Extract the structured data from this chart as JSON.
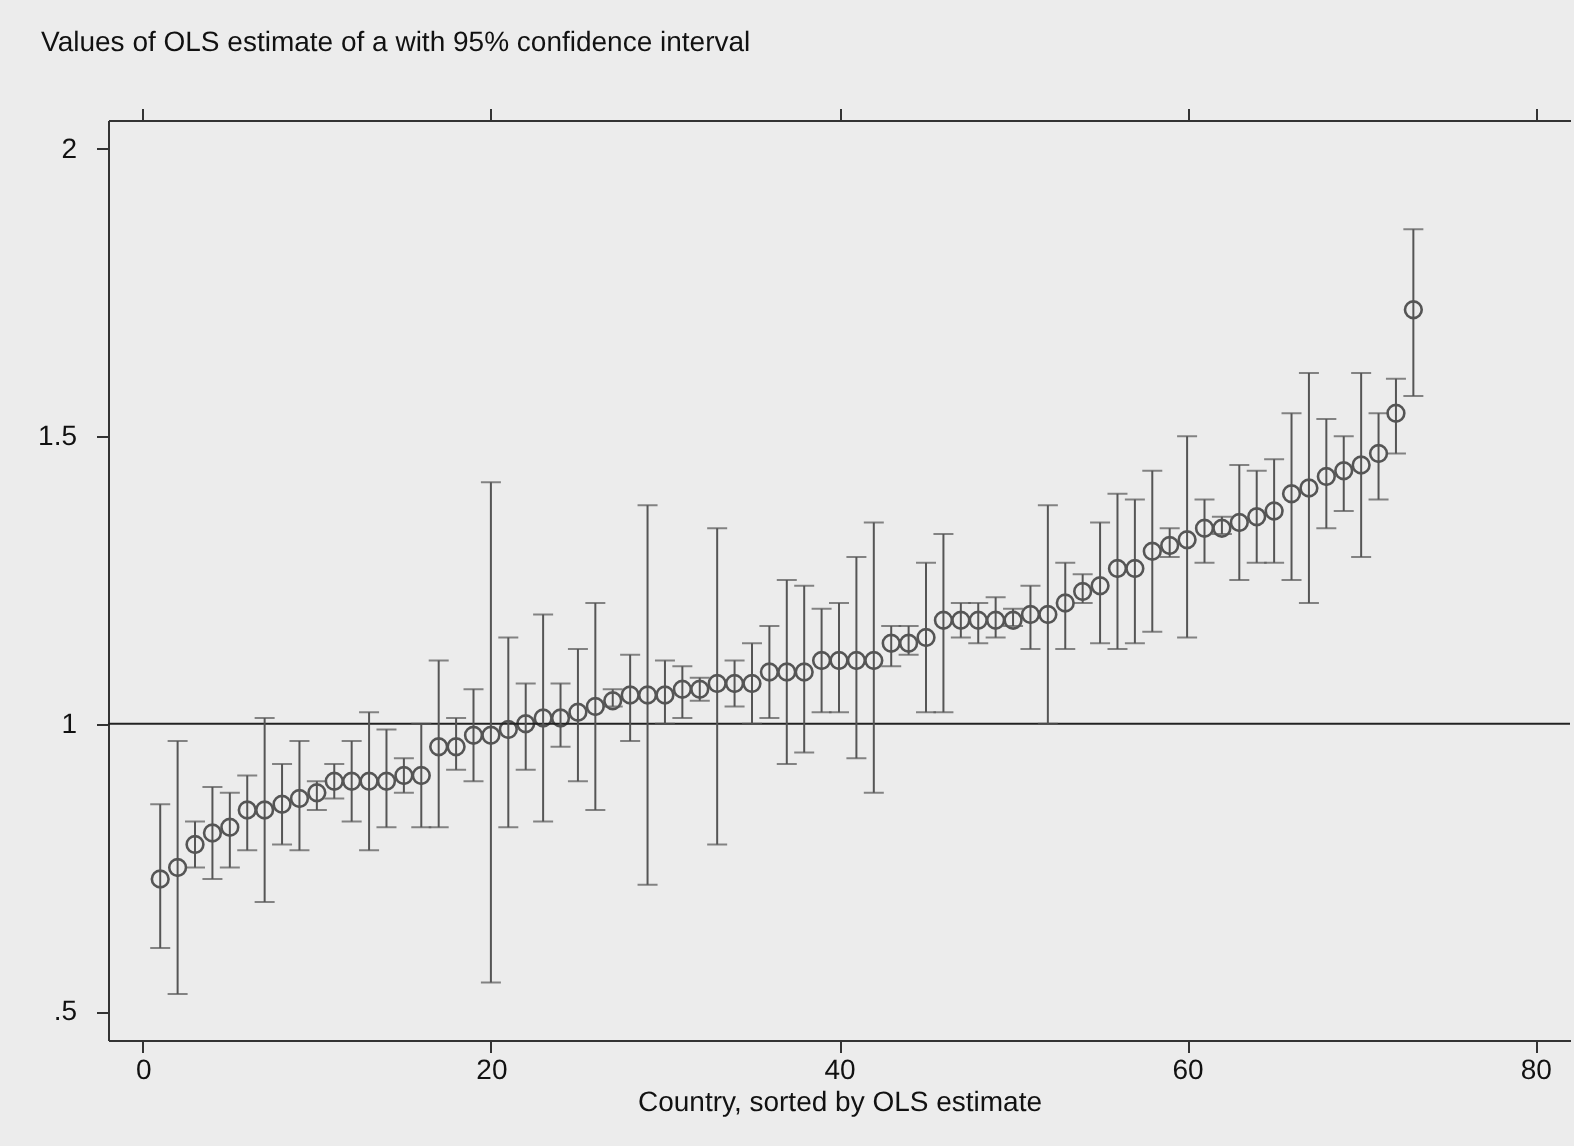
{
  "chart_data": {
    "type": "scatter",
    "title": "Values of OLS estimate of a with 95% confidence interval",
    "xlabel": "Country, sorted by OLS estimate",
    "x": [
      1,
      2,
      3,
      4,
      5,
      6,
      7,
      8,
      9,
      10,
      11,
      12,
      13,
      14,
      15,
      16,
      17,
      18,
      19,
      20,
      21,
      22,
      23,
      24,
      25,
      26,
      27,
      28,
      29,
      30,
      31,
      32,
      33,
      34,
      35,
      36,
      37,
      38,
      39,
      40,
      41,
      42,
      43,
      44,
      45,
      46,
      47,
      48,
      49,
      50,
      51,
      52,
      53,
      54,
      55,
      56,
      57,
      58,
      59,
      60,
      61,
      62,
      63,
      64,
      65,
      66,
      67,
      68,
      69,
      70,
      71,
      72,
      73
    ],
    "series": [
      {
        "color": "#555555",
        "values": [
          0.73,
          0.75,
          0.79,
          0.81,
          0.82,
          0.85,
          0.85,
          0.86,
          0.87,
          0.88,
          0.9,
          0.9,
          0.9,
          0.9,
          0.91,
          0.91,
          0.96,
          0.96,
          0.98,
          0.98,
          0.99,
          1.0,
          1.01,
          1.01,
          1.02,
          1.03,
          1.04,
          1.05,
          1.05,
          1.05,
          1.06,
          1.06,
          1.07,
          1.07,
          1.07,
          1.09,
          1.09,
          1.09,
          1.11,
          1.11,
          1.11,
          1.11,
          1.14,
          1.14,
          1.15,
          1.18,
          1.18,
          1.18,
          1.18,
          1.18,
          1.19,
          1.19,
          1.21,
          1.23,
          1.24,
          1.27,
          1.27,
          1.3,
          1.31,
          1.32,
          1.34,
          1.34,
          1.35,
          1.36,
          1.37,
          1.4,
          1.41,
          1.43,
          1.44,
          1.45,
          1.47,
          1.54,
          1.72
        ],
        "errors": [
          [
            0.61,
            0.86
          ],
          [
            0.53,
            0.97
          ],
          [
            0.75,
            0.83
          ],
          [
            0.73,
            0.89
          ],
          [
            0.75,
            0.88
          ],
          [
            0.78,
            0.91
          ],
          [
            0.69,
            1.01
          ],
          [
            0.79,
            0.93
          ],
          [
            0.78,
            0.97
          ],
          [
            0.85,
            0.9
          ],
          [
            0.87,
            0.93
          ],
          [
            0.83,
            0.97
          ],
          [
            0.78,
            1.02
          ],
          [
            0.82,
            0.99
          ],
          [
            0.88,
            0.94
          ],
          [
            0.82,
            1.0
          ],
          [
            0.82,
            1.11
          ],
          [
            0.92,
            1.01
          ],
          [
            0.9,
            1.06
          ],
          [
            0.55,
            1.42
          ],
          [
            0.82,
            1.15
          ],
          [
            0.92,
            1.07
          ],
          [
            0.83,
            1.19
          ],
          [
            0.96,
            1.07
          ],
          [
            0.9,
            1.13
          ],
          [
            0.85,
            1.21
          ],
          [
            1.03,
            1.06
          ],
          [
            0.97,
            1.12
          ],
          [
            0.72,
            1.38
          ],
          [
            1.0,
            1.11
          ],
          [
            1.01,
            1.1
          ],
          [
            1.04,
            1.08
          ],
          [
            0.79,
            1.34
          ],
          [
            1.03,
            1.11
          ],
          [
            1.0,
            1.14
          ],
          [
            1.01,
            1.17
          ],
          [
            0.93,
            1.25
          ],
          [
            0.95,
            1.24
          ],
          [
            1.02,
            1.2
          ],
          [
            1.02,
            1.21
          ],
          [
            0.94,
            1.29
          ],
          [
            0.88,
            1.35
          ],
          [
            1.1,
            1.17
          ],
          [
            1.12,
            1.17
          ],
          [
            1.02,
            1.28
          ],
          [
            1.02,
            1.33
          ],
          [
            1.15,
            1.21
          ],
          [
            1.14,
            1.21
          ],
          [
            1.15,
            1.22
          ],
          [
            1.17,
            1.2
          ],
          [
            1.13,
            1.24
          ],
          [
            1.0,
            1.38
          ],
          [
            1.13,
            1.28
          ],
          [
            1.21,
            1.26
          ],
          [
            1.14,
            1.35
          ],
          [
            1.13,
            1.4
          ],
          [
            1.14,
            1.39
          ],
          [
            1.16,
            1.44
          ],
          [
            1.29,
            1.34
          ],
          [
            1.15,
            1.5
          ],
          [
            1.28,
            1.39
          ],
          [
            1.33,
            1.36
          ],
          [
            1.25,
            1.45
          ],
          [
            1.28,
            1.44
          ],
          [
            1.28,
            1.46
          ],
          [
            1.25,
            1.54
          ],
          [
            1.21,
            1.61
          ],
          [
            1.34,
            1.53
          ],
          [
            1.37,
            1.5
          ],
          [
            1.29,
            1.61
          ],
          [
            1.39,
            1.54
          ],
          [
            1.47,
            1.6
          ],
          [
            1.57,
            1.86
          ]
        ]
      }
    ],
    "xlim": [
      -2,
      82
    ],
    "xticks": [
      0,
      20,
      40,
      60,
      80
    ],
    "ylim": [
      0.45,
      2.05
    ],
    "yticks": [
      {
        "value": 0.5,
        "label": ".5"
      },
      1,
      1.5,
      2
    ],
    "ref_lines": [
      {
        "axis": "y",
        "value": 1,
        "color": "#222222"
      }
    ],
    "marker": "circle",
    "grid": false
  }
}
